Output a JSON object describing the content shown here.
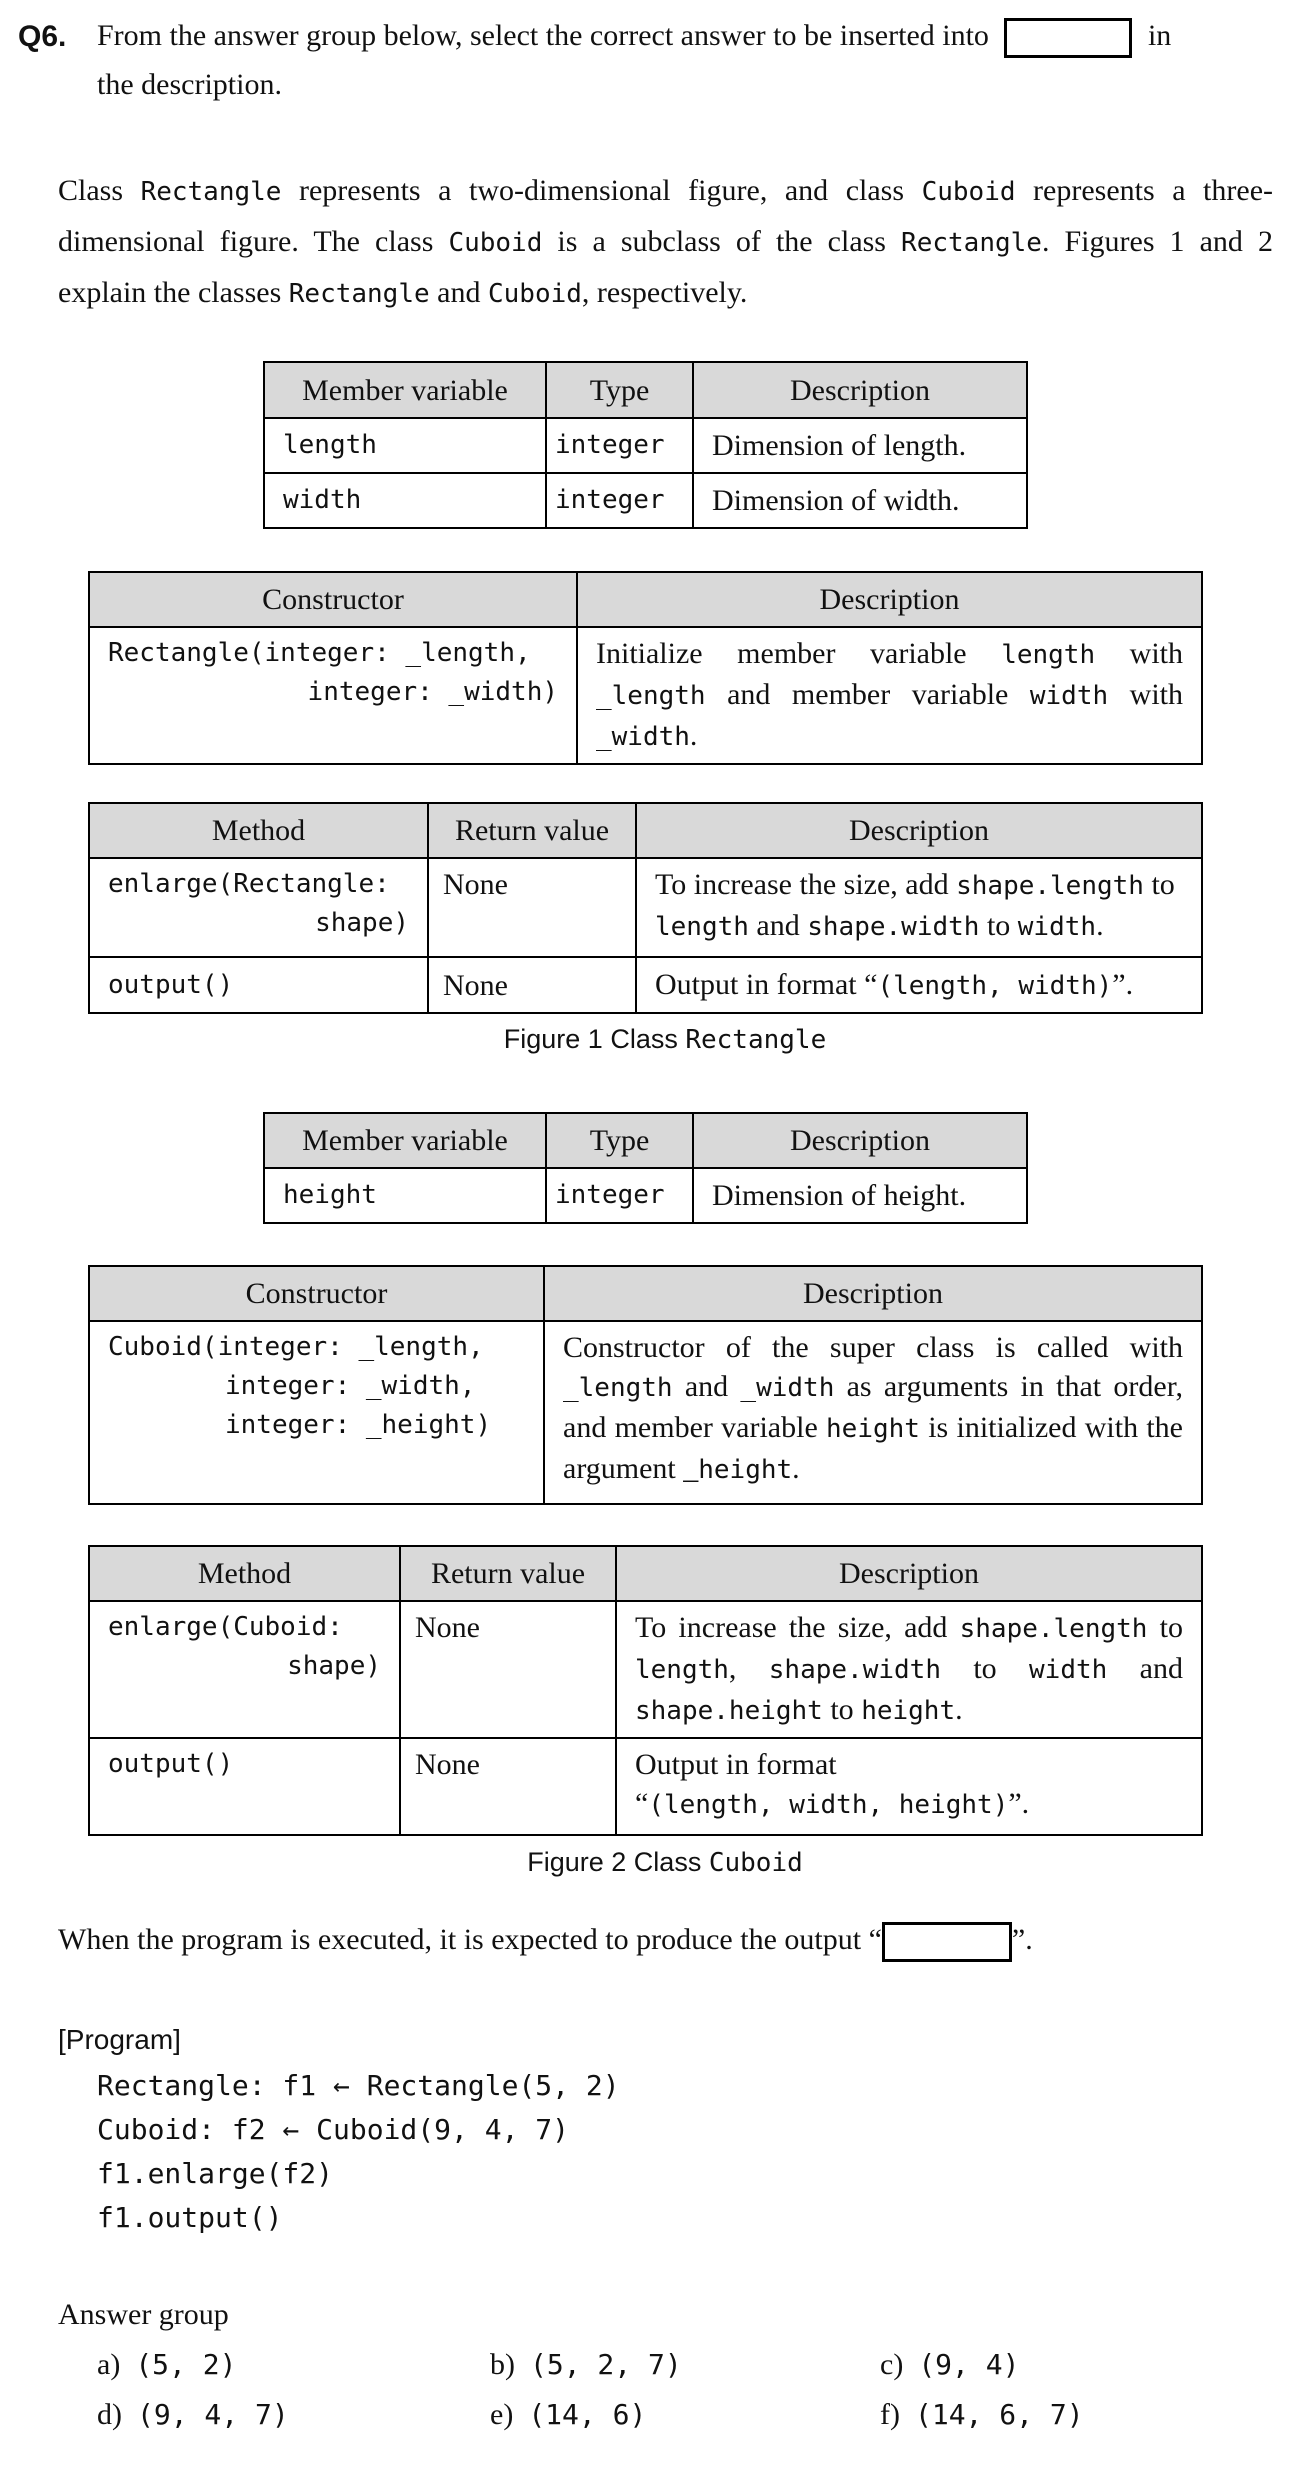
{
  "question": {
    "number": "Q6.",
    "prompt_before": "From the answer group below, select the correct answer to be inserted into",
    "prompt_after": "in",
    "prompt_line2": "the description."
  },
  "intro": {
    "t1": "Class ",
    "c1": "Rectangle",
    "t2": " represents a two-dimensional figure, and class ",
    "c2": "Cuboid",
    "t3": " represents a three-",
    "t4": "dimensional figure. The class ",
    "c3": "Cuboid",
    "t5": " is a subclass of the class ",
    "c4": "Rectangle",
    "t6": ". Figures 1 and 2",
    "t7": "explain the classes ",
    "c5": "Rectangle",
    "t8": " and ",
    "c6": "Cuboid",
    "t9": ", respectively."
  },
  "figure1": {
    "vars": {
      "headers": [
        "Member variable",
        "Type",
        "Description"
      ],
      "rows": [
        [
          "length",
          "integer",
          "Dimension of length."
        ],
        [
          "width",
          "integer",
          "Dimension of width."
        ]
      ]
    },
    "ctor": {
      "headers": [
        "Constructor",
        "Description"
      ],
      "sig1": "Rectangle(integer: _length,",
      "sig2": "integer: _width)",
      "d1": "Initialize member variable ",
      "d2": "length",
      "d3": " with ",
      "d4": "_length",
      "d5": " and member variable ",
      "d6": "width",
      "d7": " with ",
      "d8": "_width",
      "d9": "."
    },
    "methods": {
      "headers": [
        "Method",
        "Return value",
        "Description"
      ],
      "m1a": "enlarge(Rectangle:",
      "m1b": "shape)",
      "r1": "None",
      "d1": "To increase the size, add ",
      "d2": "shape.length",
      "d3": " to ",
      "d4": "length",
      "d5": " and ",
      "d6": "shape.width",
      "d7": " to ",
      "d8": "width",
      "d9": ".",
      "m2": "output()",
      "r2": "None",
      "e1": "Output in format “",
      "e2": "(length, width)",
      "e3": "”."
    },
    "caption_a": "Figure 1  Class ",
    "caption_b": "Rectangle"
  },
  "figure2": {
    "vars": {
      "headers": [
        "Member variable",
        "Type",
        "Description"
      ],
      "rows": [
        [
          "height",
          "integer",
          "Dimension of height."
        ]
      ]
    },
    "ctor": {
      "headers": [
        "Constructor",
        "Description"
      ],
      "sig1": "Cuboid(integer: _length,",
      "sig2": "integer: _width,",
      "sig3": "integer: _height)",
      "d1": "Constructor of the super class is called with ",
      "d2": "_length",
      "d3": " and ",
      "d4": "_width",
      "d5": " as arguments in that order, and member variable ",
      "d6": "height",
      "d7": " is initialized with the argument _",
      "d8": "height",
      "d9": "."
    },
    "methods": {
      "headers": [
        "Method",
        "Return value",
        "Description"
      ],
      "m1a": "enlarge(Cuboid:",
      "m1b": "shape)",
      "r1": "None",
      "d1": "To increase the size, add ",
      "d2": "shape.length",
      "d3": " to ",
      "d4": "length",
      "d5": ", ",
      "d6": "shape.width",
      "d7": " to ",
      "d8": "width",
      "d9": " and ",
      "d10": "shape.height",
      "d11": " to ",
      "d12": "height",
      "d13": ".",
      "m2": "output()",
      "r2": "None",
      "e1": "Output in format",
      "e2": "“",
      "e3": "(length, width, height)",
      "e4": "”."
    },
    "caption_a": "Figure 2  Class ",
    "caption_b": "Cuboid"
  },
  "output_sentence": {
    "before": "When the program is executed, it is expected to produce the output “",
    "after": "”."
  },
  "program": {
    "label": "[Program]",
    "lines": [
      "Rectangle: f1 ← Rectangle(5, 2)",
      "Cuboid: f2 ← Cuboid(9, 4, 7)",
      "f1.enlarge(f2)",
      "f1.output()"
    ]
  },
  "answers": {
    "label": "Answer group",
    "items": [
      {
        "letter": "a)",
        "value": "(5, 2)"
      },
      {
        "letter": "b)",
        "value": "(5, 2, 7)"
      },
      {
        "letter": "c)",
        "value": "(9, 4)"
      },
      {
        "letter": "d)",
        "value": "(9, 4, 7)"
      },
      {
        "letter": "e)",
        "value": "(14, 6)"
      },
      {
        "letter": "f)",
        "value": "(14, 6, 7)"
      }
    ]
  },
  "colors": {
    "header_bg": "#d9d9d9",
    "border": "#000000"
  }
}
